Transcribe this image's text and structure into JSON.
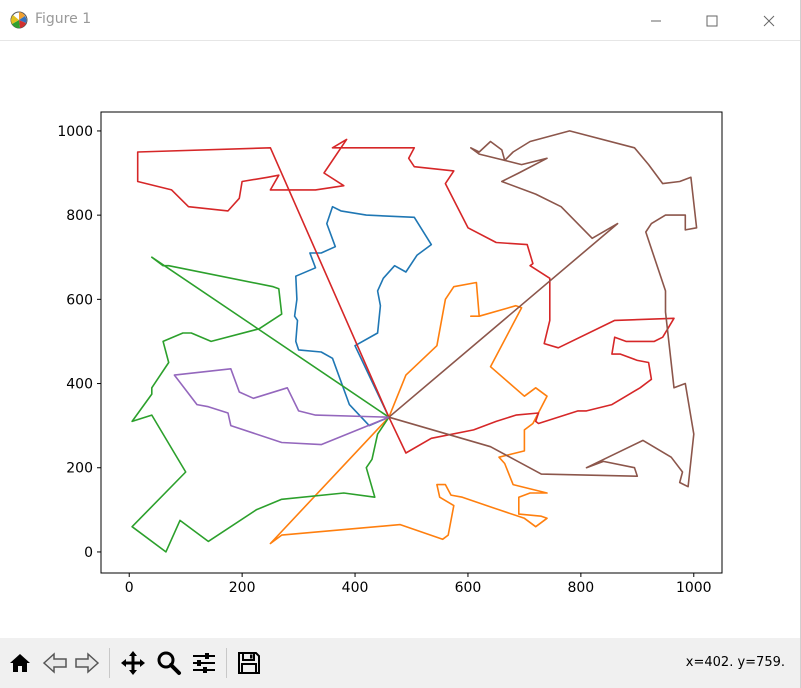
{
  "window": {
    "title": "Figure 1"
  },
  "toolbar": {
    "tools": [
      "home-icon",
      "back-icon",
      "forward-icon",
      "pan-icon",
      "zoom-icon",
      "configure-subplots-icon",
      "save-icon"
    ],
    "coords": "x=402. y=759."
  },
  "chart_data": {
    "type": "line",
    "title": "",
    "xlabel": "",
    "ylabel": "",
    "xlim": [
      -50,
      1050
    ],
    "ylim": [
      -50,
      1045
    ],
    "xticks": [
      "0",
      "200",
      "400",
      "600",
      "800",
      "1000"
    ],
    "yticks": [
      "0",
      "200",
      "400",
      "600",
      "800",
      "1000"
    ],
    "grid": false,
    "depot": [
      460,
      320
    ],
    "series": [
      {
        "color": "#1f77b4",
        "points": [
          [
            460,
            320
          ],
          [
            425,
            300
          ],
          [
            390,
            350
          ],
          [
            360,
            460
          ],
          [
            340,
            475
          ],
          [
            300,
            480
          ],
          [
            295,
            500
          ],
          [
            298,
            550
          ],
          [
            293,
            560
          ],
          [
            297,
            600
          ],
          [
            295,
            655
          ],
          [
            330,
            675
          ],
          [
            320,
            710
          ],
          [
            340,
            710
          ],
          [
            365,
            725
          ],
          [
            350,
            780
          ],
          [
            360,
            820
          ],
          [
            375,
            810
          ],
          [
            420,
            800
          ],
          [
            505,
            795
          ],
          [
            535,
            730
          ],
          [
            510,
            705
          ],
          [
            490,
            665
          ],
          [
            470,
            680
          ],
          [
            450,
            650
          ],
          [
            440,
            620
          ],
          [
            445,
            585
          ],
          [
            440,
            520
          ],
          [
            400,
            490
          ],
          [
            460,
            320
          ]
        ]
      },
      {
        "color": "#ff7f0e",
        "points": [
          [
            460,
            320
          ],
          [
            490,
            420
          ],
          [
            545,
            490
          ],
          [
            560,
            600
          ],
          [
            575,
            630
          ],
          [
            615,
            640
          ],
          [
            620,
            560
          ],
          [
            605,
            560
          ],
          [
            620,
            560
          ],
          [
            685,
            585
          ],
          [
            695,
            580
          ],
          [
            640,
            440
          ],
          [
            700,
            370
          ],
          [
            720,
            390
          ],
          [
            740,
            370
          ],
          [
            715,
            305
          ],
          [
            700,
            290
          ],
          [
            700,
            240
          ],
          [
            655,
            225
          ],
          [
            665,
            210
          ],
          [
            680,
            160
          ],
          [
            740,
            140
          ],
          [
            710,
            140
          ],
          [
            690,
            130
          ],
          [
            690,
            90
          ],
          [
            730,
            85
          ],
          [
            740,
            80
          ],
          [
            720,
            60
          ],
          [
            700,
            80
          ],
          [
            655,
            100
          ],
          [
            590,
            130
          ],
          [
            570,
            135
          ],
          [
            560,
            160
          ],
          [
            545,
            160
          ],
          [
            550,
            130
          ],
          [
            575,
            110
          ],
          [
            565,
            40
          ],
          [
            555,
            30
          ],
          [
            480,
            65
          ],
          [
            270,
            40
          ],
          [
            250,
            20
          ],
          [
            460,
            320
          ]
        ]
      },
      {
        "color": "#2ca02c",
        "points": [
          [
            460,
            320
          ],
          [
            440,
            280
          ],
          [
            430,
            220
          ],
          [
            420,
            200
          ],
          [
            435,
            130
          ],
          [
            380,
            140
          ],
          [
            270,
            125
          ],
          [
            225,
            100
          ],
          [
            140,
            25
          ],
          [
            90,
            75
          ],
          [
            65,
            0
          ],
          [
            5,
            60
          ],
          [
            100,
            190
          ],
          [
            40,
            325
          ],
          [
            5,
            310
          ],
          [
            40,
            375
          ],
          [
            40,
            390
          ],
          [
            70,
            450
          ],
          [
            60,
            500
          ],
          [
            95,
            520
          ],
          [
            110,
            520
          ],
          [
            145,
            500
          ],
          [
            230,
            530
          ],
          [
            270,
            565
          ],
          [
            265,
            625
          ],
          [
            255,
            630
          ],
          [
            70,
            680
          ],
          [
            60,
            680
          ],
          [
            40,
            700
          ],
          [
            460,
            320
          ]
        ]
      },
      {
        "color": "#d62728",
        "points": [
          [
            460,
            320
          ],
          [
            250,
            960
          ],
          [
            15,
            950
          ],
          [
            15,
            880
          ],
          [
            75,
            860
          ],
          [
            105,
            820
          ],
          [
            175,
            810
          ],
          [
            195,
            840
          ],
          [
            200,
            880
          ],
          [
            245,
            890
          ],
          [
            265,
            895
          ],
          [
            250,
            860
          ],
          [
            330,
            860
          ],
          [
            380,
            870
          ],
          [
            345,
            900
          ],
          [
            385,
            980
          ],
          [
            360,
            960
          ],
          [
            505,
            960
          ],
          [
            495,
            935
          ],
          [
            505,
            915
          ],
          [
            575,
            905
          ],
          [
            560,
            875
          ],
          [
            600,
            770
          ],
          [
            650,
            735
          ],
          [
            705,
            730
          ],
          [
            715,
            685
          ],
          [
            710,
            680
          ],
          [
            745,
            650
          ],
          [
            745,
            550
          ],
          [
            735,
            495
          ],
          [
            760,
            485
          ],
          [
            860,
            550
          ],
          [
            965,
            555
          ],
          [
            945,
            510
          ],
          [
            930,
            500
          ],
          [
            880,
            500
          ],
          [
            860,
            510
          ],
          [
            855,
            470
          ],
          [
            870,
            470
          ],
          [
            900,
            455
          ],
          [
            920,
            450
          ],
          [
            925,
            410
          ],
          [
            905,
            390
          ],
          [
            880,
            370
          ],
          [
            855,
            350
          ],
          [
            810,
            335
          ],
          [
            795,
            335
          ],
          [
            725,
            305
          ],
          [
            720,
            310
          ],
          [
            725,
            330
          ],
          [
            685,
            325
          ],
          [
            650,
            310
          ],
          [
            610,
            290
          ],
          [
            535,
            270
          ],
          [
            490,
            235
          ],
          [
            460,
            320
          ]
        ]
      },
      {
        "color": "#9467bd",
        "points": [
          [
            460,
            320
          ],
          [
            330,
            325
          ],
          [
            300,
            335
          ],
          [
            280,
            390
          ],
          [
            220,
            365
          ],
          [
            195,
            380
          ],
          [
            180,
            435
          ],
          [
            80,
            420
          ],
          [
            120,
            350
          ],
          [
            140,
            345
          ],
          [
            175,
            330
          ],
          [
            180,
            300
          ],
          [
            270,
            260
          ],
          [
            340,
            255
          ],
          [
            460,
            320
          ]
        ]
      },
      {
        "color": "#8c564b",
        "points": [
          [
            460,
            320
          ],
          [
            640,
            250
          ],
          [
            730,
            185
          ],
          [
            900,
            180
          ],
          [
            895,
            200
          ],
          [
            840,
            215
          ],
          [
            810,
            200
          ],
          [
            910,
            265
          ],
          [
            960,
            225
          ],
          [
            980,
            190
          ],
          [
            975,
            165
          ],
          [
            990,
            155
          ],
          [
            1000,
            280
          ],
          [
            985,
            400
          ],
          [
            965,
            390
          ],
          [
            950,
            570
          ],
          [
            950,
            620
          ],
          [
            915,
            760
          ],
          [
            925,
            780
          ],
          [
            950,
            800
          ],
          [
            985,
            800
          ],
          [
            985,
            765
          ],
          [
            1005,
            770
          ],
          [
            995,
            890
          ],
          [
            975,
            880
          ],
          [
            945,
            875
          ],
          [
            920,
            920
          ],
          [
            895,
            960
          ],
          [
            780,
            1000
          ],
          [
            710,
            975
          ],
          [
            680,
            950
          ],
          [
            665,
            930
          ],
          [
            660,
            955
          ],
          [
            640,
            975
          ],
          [
            620,
            950
          ],
          [
            605,
            960
          ],
          [
            620,
            945
          ],
          [
            695,
            920
          ],
          [
            740,
            935
          ],
          [
            690,
            900
          ],
          [
            660,
            880
          ],
          [
            720,
            850
          ],
          [
            765,
            820
          ],
          [
            820,
            745
          ],
          [
            865,
            780
          ],
          [
            460,
            320
          ]
        ]
      }
    ]
  }
}
